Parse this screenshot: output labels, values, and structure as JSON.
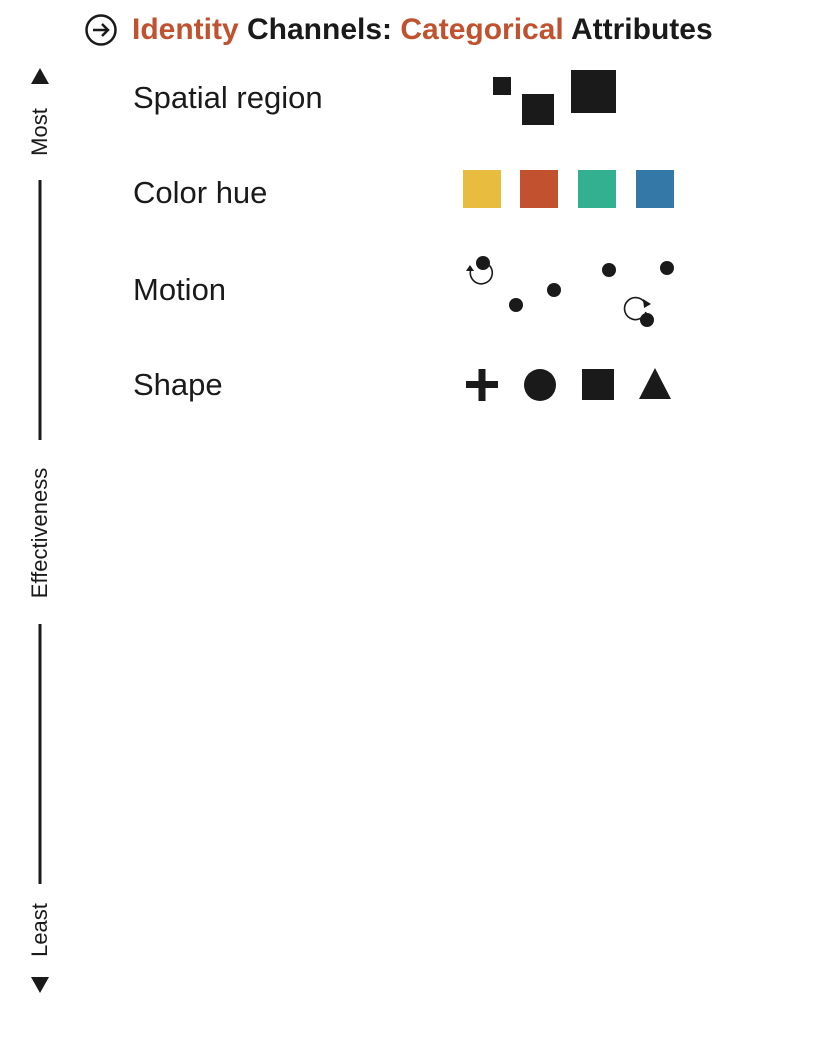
{
  "title": {
    "icon": "arrow-right-circle-icon",
    "part1": "Identity",
    "part2": " Channels: ",
    "part3": "Categorical",
    "part4": " Attributes",
    "accent_color": "#c0522f"
  },
  "axis": {
    "top_label": "Most",
    "middle_label": "Effectiveness",
    "bottom_label": "Least"
  },
  "rows": [
    {
      "label": "Spatial region"
    },
    {
      "label": "Color hue",
      "swatches": [
        "#e8bc3e",
        "#c2522f",
        "#32b08f",
        "#3378a6"
      ]
    },
    {
      "label": "Motion"
    },
    {
      "label": "Shape",
      "shapes": [
        "plus-icon",
        "circle-icon",
        "square-icon",
        "triangle-icon"
      ]
    }
  ]
}
